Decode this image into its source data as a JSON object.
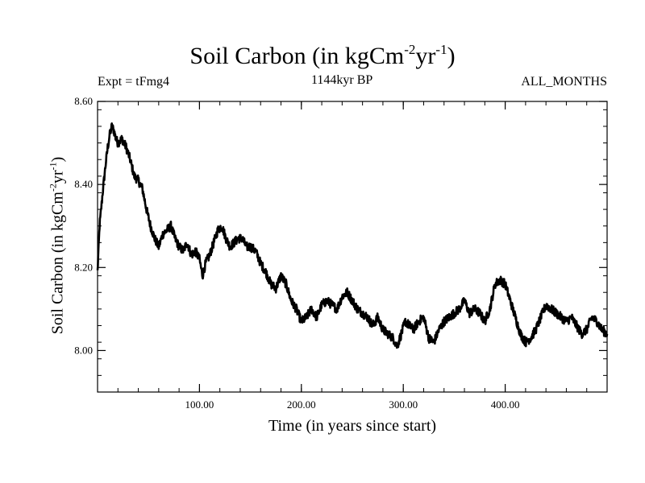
{
  "header": {
    "title_main": "Soil Carbon (in kgCm",
    "title_exp1": "-2",
    "title_mid": "yr",
    "title_exp2": "-1",
    "title_end": ")",
    "experiment": "Expt = tFmg4",
    "period": "1144kyr BP",
    "months": "ALL_MONTHS"
  },
  "axes": {
    "x_label": "Time (in years since start)",
    "y_label_main": "Soil Carbon (in kgCm",
    "y_label_exp1": "-2",
    "y_label_mid": "yr",
    "y_label_exp2": "-1",
    "y_label_end": ")"
  },
  "chart_data": {
    "type": "line",
    "title": "Soil Carbon (in kgCm-2yr-1)",
    "xlabel": "Time (in years since start)",
    "ylabel": "Soil Carbon (in kgCm-2yr-1)",
    "xlim": [
      0,
      500
    ],
    "ylim": [
      7.9,
      8.6
    ],
    "x_ticks": [
      100,
      200,
      300,
      400
    ],
    "x_tick_labels": [
      "100.00",
      "200.00",
      "300.00",
      "400.00"
    ],
    "y_ticks": [
      8.0,
      8.2,
      8.4,
      8.6
    ],
    "y_tick_labels": [
      "8.00",
      "8.20",
      "8.40",
      "8.60"
    ],
    "line_color": "#000000",
    "series": [
      {
        "x": [
          0,
          2,
          5,
          8,
          10,
          12,
          14,
          16,
          18,
          20,
          24,
          28,
          32,
          36,
          40,
          44,
          48,
          52,
          56,
          60,
          64,
          68,
          72,
          76,
          80,
          84,
          88,
          92,
          96,
          100,
          103,
          106,
          110,
          114,
          118,
          122,
          126,
          130,
          134,
          138,
          142,
          146,
          150,
          155,
          160,
          165,
          170,
          175,
          180,
          185,
          190,
          195,
          200,
          205,
          210,
          215,
          220,
          225,
          230,
          235,
          240,
          245,
          250,
          255,
          260,
          265,
          270,
          275,
          280,
          285,
          290,
          294,
          298,
          302,
          306,
          310,
          315,
          320,
          325,
          330,
          335,
          340,
          345,
          350,
          355,
          360,
          365,
          370,
          375,
          380,
          385,
          390,
          395,
          400,
          405,
          410,
          415,
          420,
          425,
          430,
          435,
          440,
          445,
          450,
          455,
          460,
          465,
          470,
          475,
          480,
          485,
          490,
          495,
          500
        ],
        "values": [
          8.19,
          8.3,
          8.38,
          8.45,
          8.49,
          8.52,
          8.54,
          8.53,
          8.51,
          8.5,
          8.51,
          8.49,
          8.46,
          8.42,
          8.41,
          8.39,
          8.34,
          8.3,
          8.27,
          8.25,
          8.28,
          8.29,
          8.3,
          8.27,
          8.25,
          8.24,
          8.26,
          8.23,
          8.24,
          8.22,
          8.18,
          8.21,
          8.23,
          8.26,
          8.29,
          8.3,
          8.27,
          8.25,
          8.26,
          8.27,
          8.27,
          8.25,
          8.25,
          8.24,
          8.21,
          8.19,
          8.16,
          8.15,
          8.18,
          8.16,
          8.12,
          8.1,
          8.07,
          8.08,
          8.1,
          8.08,
          8.11,
          8.12,
          8.11,
          8.1,
          8.13,
          8.14,
          8.12,
          8.1,
          8.09,
          8.08,
          8.06,
          8.08,
          8.05,
          8.04,
          8.03,
          8.01,
          8.04,
          8.07,
          8.06,
          8.05,
          8.07,
          8.08,
          8.03,
          8.02,
          8.05,
          8.07,
          8.08,
          8.09,
          8.1,
          8.12,
          8.09,
          8.1,
          8.09,
          8.07,
          8.1,
          8.16,
          8.17,
          8.16,
          8.12,
          8.08,
          8.04,
          8.02,
          8.03,
          8.05,
          8.08,
          8.11,
          8.1,
          8.09,
          8.08,
          8.07,
          8.08,
          8.06,
          8.04,
          8.05,
          8.08,
          8.07,
          8.05,
          8.04
        ]
      }
    ]
  }
}
